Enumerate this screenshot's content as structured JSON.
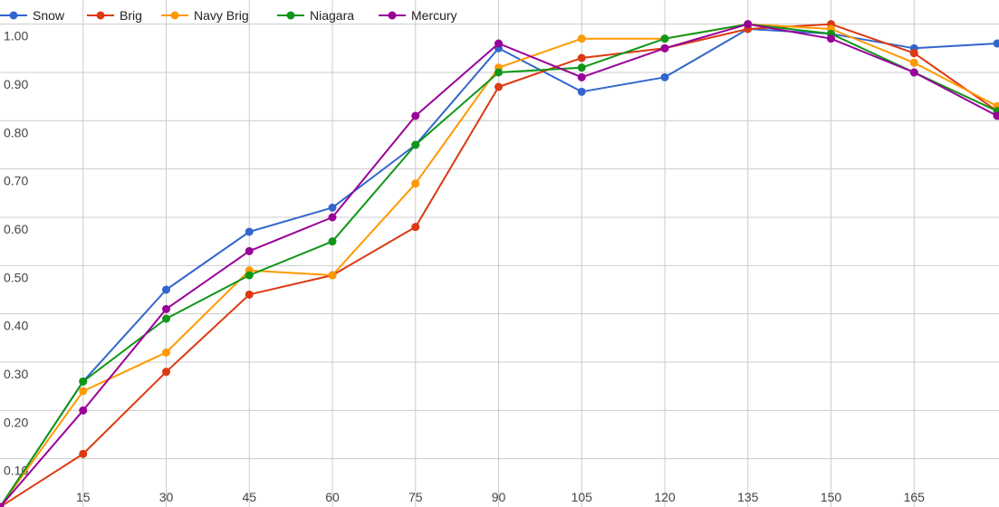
{
  "chart_data": {
    "type": "line",
    "title": "",
    "xlabel": "",
    "ylabel": "",
    "x": [
      0,
      15,
      30,
      45,
      60,
      75,
      90,
      105,
      120,
      135,
      150,
      165,
      180
    ],
    "xlim": [
      0,
      180
    ],
    "ylim": [
      0.0,
      1.05
    ],
    "x_ticks": [
      "15",
      "30",
      "45",
      "60",
      "75",
      "90",
      "105",
      "120",
      "135",
      "150",
      "165"
    ],
    "y_ticks": [
      "0.10",
      "0.20",
      "0.30",
      "0.40",
      "0.50",
      "0.60",
      "0.70",
      "0.80",
      "0.90",
      "1.00"
    ],
    "grid": true,
    "legend_position": "top-left",
    "series": [
      {
        "name": "Snow",
        "color": "#3366cc",
        "values": [
          0.0,
          0.26,
          0.45,
          0.57,
          0.62,
          0.75,
          0.95,
          0.86,
          0.89,
          0.99,
          0.98,
          0.95,
          0.96
        ]
      },
      {
        "name": "Brig",
        "color": "#dc3912",
        "values": [
          0.0,
          0.11,
          0.28,
          0.44,
          0.48,
          0.58,
          0.87,
          0.93,
          0.95,
          0.99,
          1.0,
          0.94,
          0.82
        ]
      },
      {
        "name": "Navy Brig",
        "color": "#ff9900",
        "values": [
          0.0,
          0.24,
          0.32,
          0.49,
          0.48,
          0.67,
          0.91,
          0.97,
          0.97,
          1.0,
          0.99,
          0.92,
          0.83
        ]
      },
      {
        "name": "Niagara",
        "color": "#109618",
        "values": [
          0.0,
          0.26,
          0.39,
          0.48,
          0.55,
          0.75,
          0.9,
          0.91,
          0.97,
          1.0,
          0.98,
          0.9,
          0.82
        ]
      },
      {
        "name": "Mercury",
        "color": "#990099",
        "values": [
          0.0,
          0.2,
          0.41,
          0.53,
          0.6,
          0.81,
          0.96,
          0.89,
          0.95,
          1.0,
          0.97,
          0.9,
          0.81
        ]
      }
    ]
  }
}
